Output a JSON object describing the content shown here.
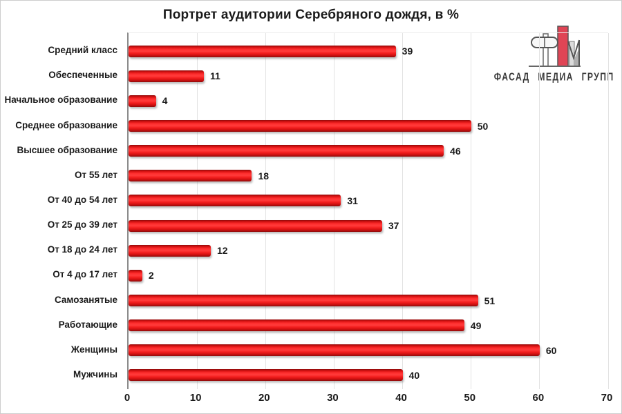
{
  "chart_data": {
    "type": "bar",
    "orientation": "horizontal",
    "title": "Портрет аудитории Серебряного дождя, в %",
    "categories": [
      "Средний класс",
      "Обеспеченные",
      "Начальное образование",
      "Среднее образование",
      "Высшее образование",
      "От 55 лет",
      "От 40 до 54 лет",
      "От 25 до 39 лет",
      "От 18 до 24 лет",
      "От 4 до 17 лет",
      "Самозанятые",
      "Работающие",
      "Женщины",
      "Мужчины"
    ],
    "values": [
      39,
      11,
      4,
      50,
      46,
      18,
      31,
      37,
      12,
      2,
      51,
      49,
      60,
      40
    ],
    "xlim": [
      0,
      70
    ],
    "x_ticks": [
      0,
      10,
      20,
      30,
      40,
      50,
      60,
      70
    ],
    "grid": "vertical-only",
    "legend": "none",
    "value_labels": true,
    "bar_color": "#ed1c24",
    "axis_line_color": "#8a8a8a",
    "gridline_color": "#e2e2e2"
  },
  "logo": {
    "text": "ФАСАД МЕДИА ГРУПП",
    "accent_color": "#e04555",
    "line_color": "#5c5c5c",
    "fill_light": "#dcdcdc"
  }
}
